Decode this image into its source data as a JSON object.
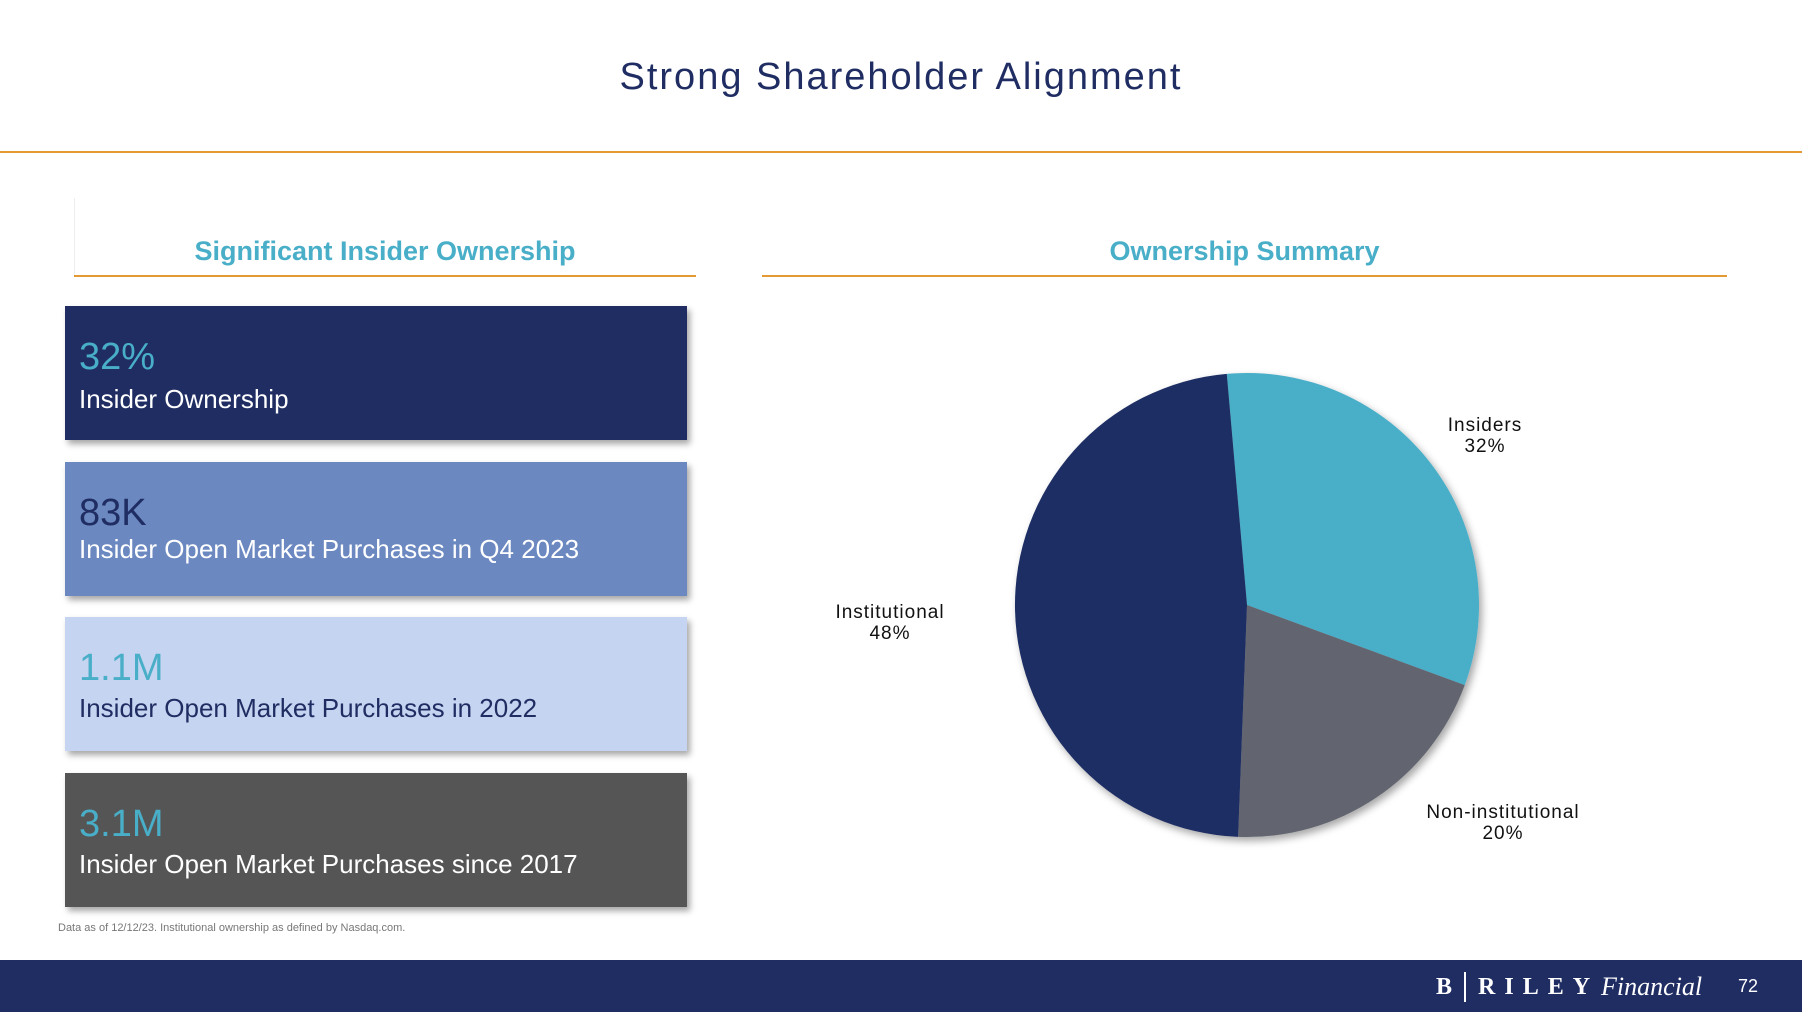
{
  "header": {
    "title": "Strong Shareholder Alignment"
  },
  "left_panel": {
    "heading": "Significant Insider Ownership",
    "cards": [
      {
        "value": "32%",
        "label": "Insider Ownership",
        "bg": "#1f2d63",
        "value_color": "#49aec8",
        "label_color": "#ffffff"
      },
      {
        "value": "83K",
        "label": "Insider Open Market Purchases in Q4 2023",
        "bg": "#6b88c0",
        "value_color": "#1f2d63",
        "label_color": "#ffffff"
      },
      {
        "value": "1.1M",
        "label": "Insider Open Market Purchases in 2022",
        "bg": "#c5d4f0",
        "value_color": "#49aec8",
        "label_color": "#1f2d63"
      },
      {
        "value": "3.1M",
        "label": "Insider Open Market Purchases since 2017",
        "bg": "#555555",
        "value_color": "#49aec8",
        "label_color": "#ffffff"
      }
    ]
  },
  "right_panel": {
    "heading": "Ownership Summary"
  },
  "chart_data": {
    "type": "pie",
    "title": "Ownership Summary",
    "slices": [
      {
        "name": "Insiders",
        "value": 32,
        "label": "32%",
        "color": "#49aec8"
      },
      {
        "name": "Non-institutional",
        "value": 20,
        "label": "20%",
        "color": "#62656f"
      },
      {
        "name": "Institutional",
        "value": 48,
        "label": "48%",
        "color": "#1f2d63"
      }
    ],
    "start_angle_deg": -5,
    "legend": "none"
  },
  "footnote": "Data as of 12/12/23. Institutional ownership as defined by Nasdaq.com.",
  "footer": {
    "brand_b": "B",
    "brand_riley": "RILEY",
    "brand_financial": "Financial",
    "page_number": "72"
  }
}
